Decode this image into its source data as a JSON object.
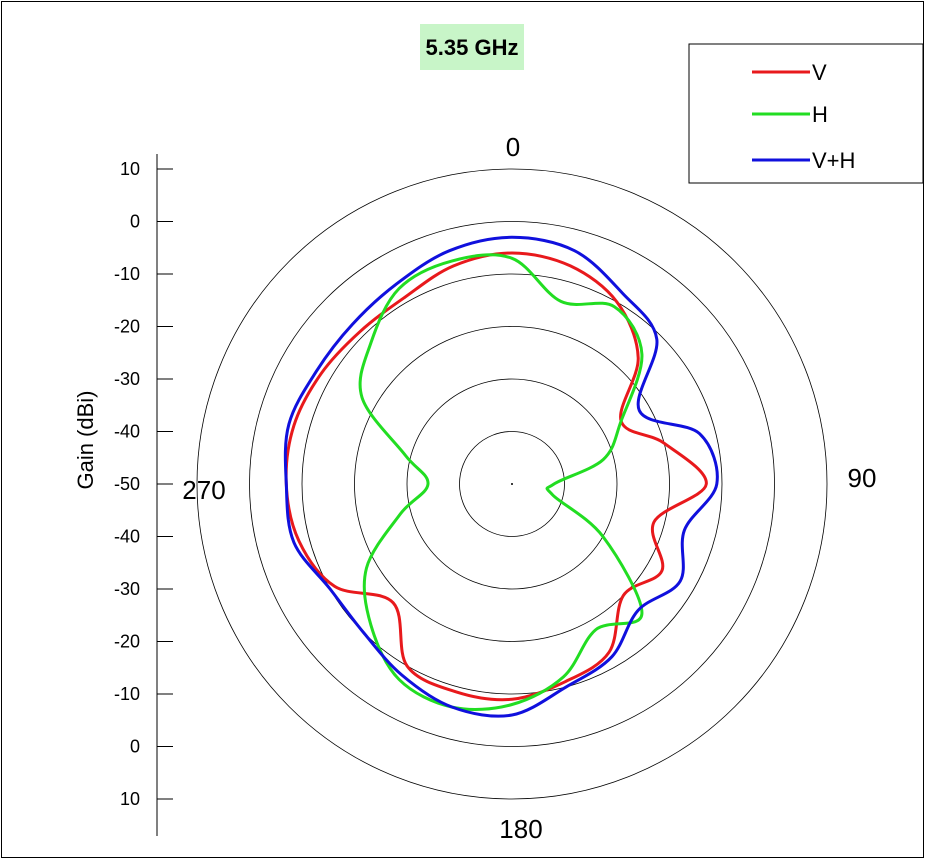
{
  "chart_data": {
    "type": "line",
    "subtype": "polar",
    "title": "5.35 GHz",
    "ylabel": "Gain (dBi)",
    "angle_labels": [
      "0",
      "90",
      "180",
      "270"
    ],
    "angle_label_degrees": [
      0,
      90,
      180,
      270
    ],
    "rings_db": [
      -40,
      -30,
      -20,
      -10,
      0,
      10
    ],
    "rlim": [
      -50,
      10
    ],
    "yticks_upper": [
      "10",
      "0",
      "-10",
      "-20",
      "-30",
      "-40",
      "-50"
    ],
    "yticks_lower": [
      "-40",
      "-30",
      "-20",
      "-10",
      "0",
      "10"
    ],
    "legend_position": "top-right",
    "theta_deg": [
      0,
      15,
      30,
      45,
      60,
      75,
      90,
      105,
      120,
      135,
      150,
      165,
      180,
      195,
      210,
      225,
      240,
      255,
      270,
      285,
      300,
      315,
      330,
      345
    ],
    "series": [
      {
        "name": "V",
        "color": "#e8191c",
        "values": [
          -6,
          -7,
          -10,
          -16,
          -26,
          -20,
          -13,
          -22,
          -17,
          -20,
          -13,
          -11,
          -9,
          -9,
          -10,
          -18,
          -11,
          -8,
          -7,
          -7,
          -8,
          -9,
          -9,
          -7
        ]
      },
      {
        "name": "H",
        "color": "#22dd22",
        "values": [
          -7,
          -14,
          -11,
          -15,
          -26,
          -32,
          -42,
          -42,
          -30,
          -15,
          -18,
          -12,
          -8,
          -6,
          -7,
          -12,
          -18,
          -28,
          -34,
          -29,
          -17,
          -12,
          -7,
          -6
        ]
      },
      {
        "name": "V+H",
        "color": "#1010dd",
        "values": [
          -3,
          -4,
          -8,
          -11,
          -22,
          -13,
          -11,
          -16,
          -13,
          -16,
          -12,
          -10,
          -6,
          -6,
          -8,
          -10,
          -10,
          -7,
          -7,
          -6,
          -7,
          -7,
          -6,
          -4
        ]
      }
    ]
  }
}
